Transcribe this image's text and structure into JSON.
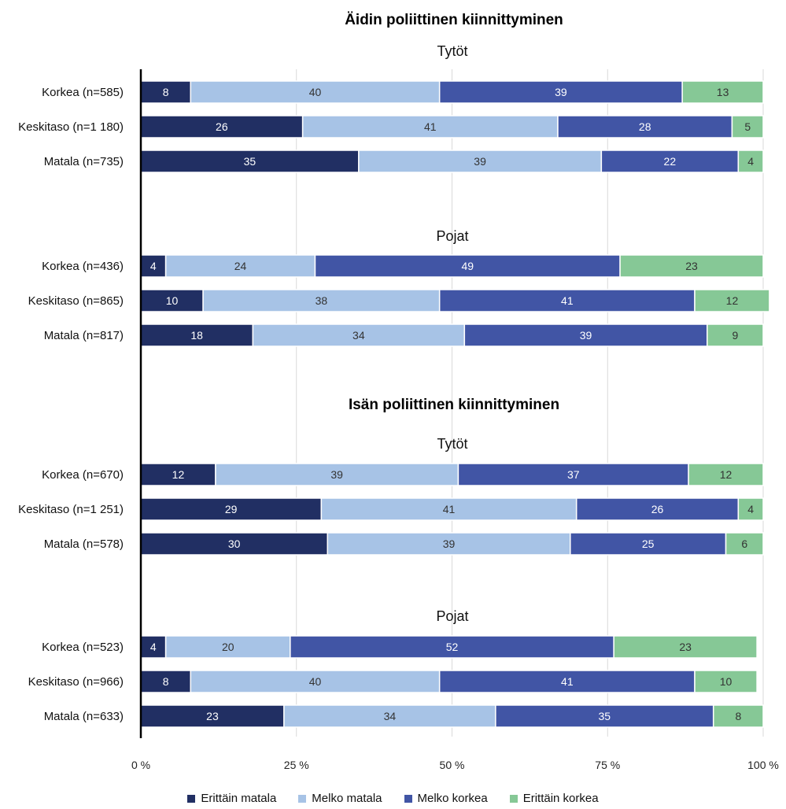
{
  "chart_data": {
    "type": "bar",
    "orientation": "horizontal-stacked",
    "xlim": [
      0,
      100
    ],
    "x_ticks": [
      "0 %",
      "25 %",
      "50 %",
      "75 %",
      "100 %"
    ],
    "grid": true,
    "legend_position": "bottom",
    "series_names": [
      "Erittäin matala",
      "Melko matala",
      "Melko korkea",
      "Erittäin korkea"
    ],
    "colors": [
      "#212f63",
      "#a7c3e6",
      "#4155a5",
      "#86c896"
    ],
    "sections": [
      {
        "title": "Äidin poliittinen kiinnittyminen",
        "groups": [
          {
            "title": "Tytöt",
            "rows": [
              {
                "label": "Korkea (n=585)",
                "values": [
                  8,
                  40,
                  39,
                  13
                ]
              },
              {
                "label": "Keskitaso (n=1 180)",
                "values": [
                  26,
                  41,
                  28,
                  5
                ]
              },
              {
                "label": "Matala (n=735)",
                "values": [
                  35,
                  39,
                  22,
                  4
                ]
              }
            ]
          },
          {
            "title": "Pojat",
            "rows": [
              {
                "label": "Korkea (n=436)",
                "values": [
                  4,
                  24,
                  49,
                  23
                ]
              },
              {
                "label": "Keskitaso (n=865)",
                "values": [
                  10,
                  38,
                  41,
                  12
                ]
              },
              {
                "label": "Matala (n=817)",
                "values": [
                  18,
                  34,
                  39,
                  9
                ]
              }
            ]
          }
        ]
      },
      {
        "title": "Isän poliittinen kiinnittyminen",
        "groups": [
          {
            "title": "Tytöt",
            "rows": [
              {
                "label": "Korkea (n=670)",
                "values": [
                  12,
                  39,
                  37,
                  12
                ]
              },
              {
                "label": "Keskitaso (n=1 251)",
                "values": [
                  29,
                  41,
                  26,
                  4
                ]
              },
              {
                "label": "Matala (n=578)",
                "values": [
                  30,
                  39,
                  25,
                  6
                ]
              }
            ]
          },
          {
            "title": "Pojat",
            "rows": [
              {
                "label": "Korkea (n=523)",
                "values": [
                  4,
                  20,
                  52,
                  23
                ]
              },
              {
                "label": "Keskitaso (n=966)",
                "values": [
                  8,
                  40,
                  41,
                  10
                ]
              },
              {
                "label": "Matala (n=633)",
                "values": [
                  23,
                  34,
                  35,
                  8
                ]
              }
            ]
          }
        ]
      }
    ]
  }
}
